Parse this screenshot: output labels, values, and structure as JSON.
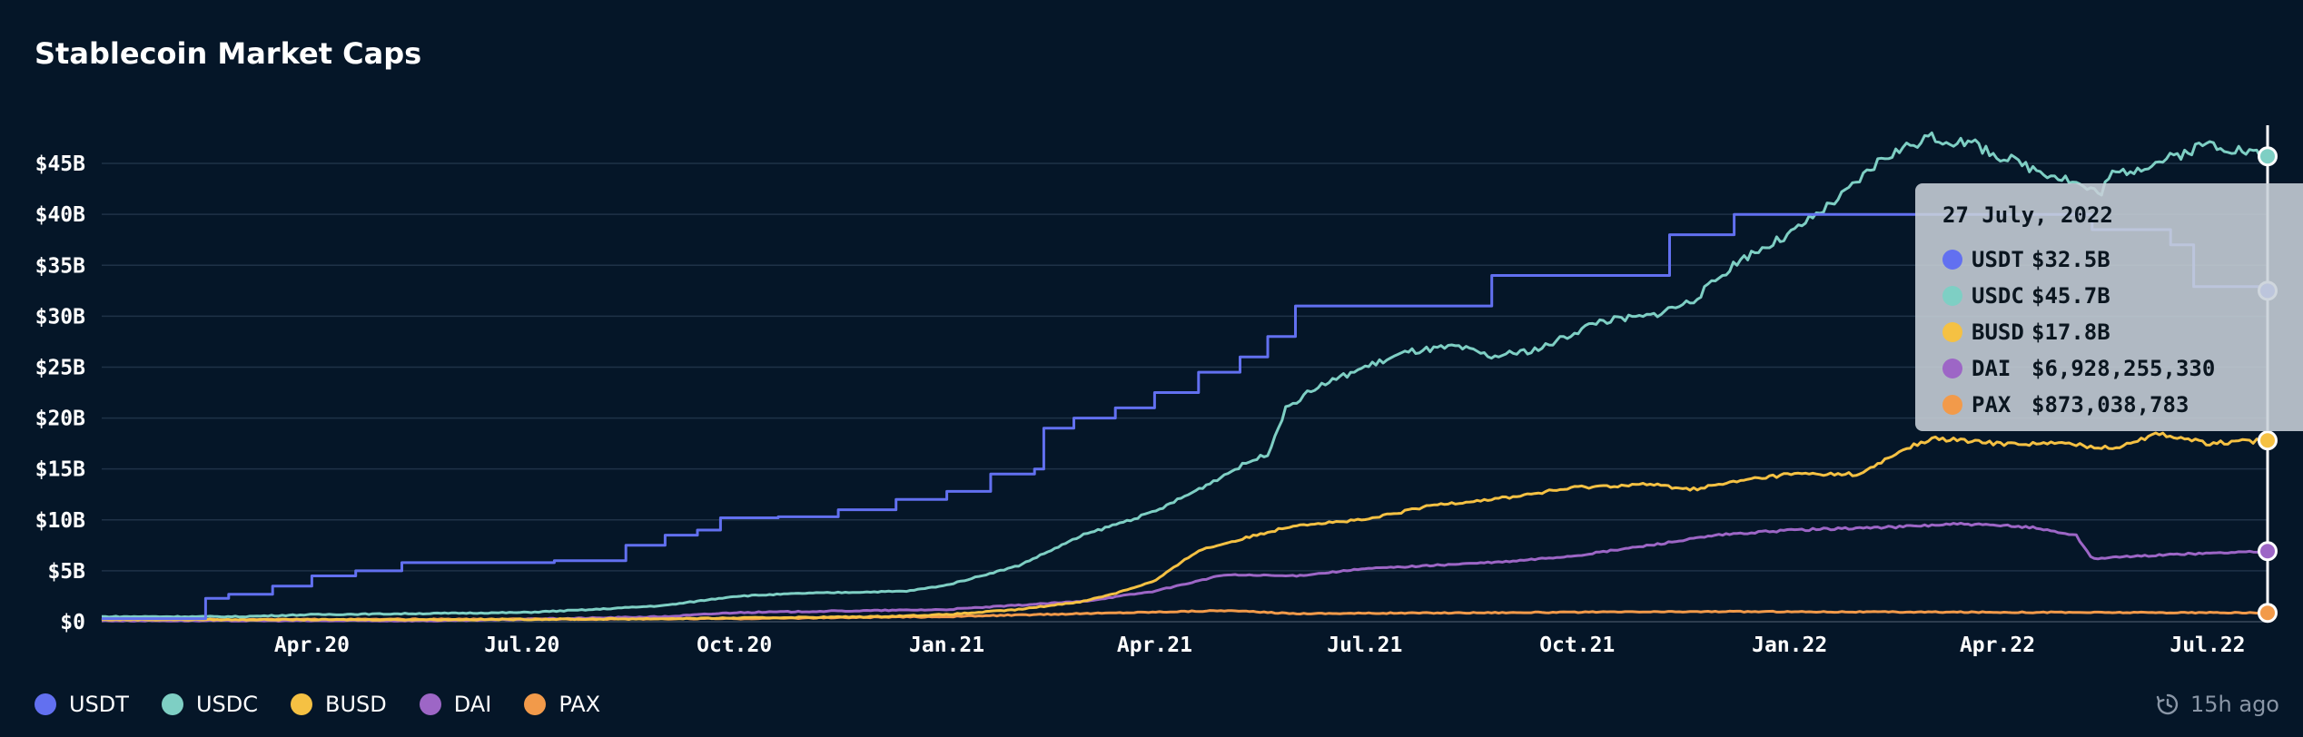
{
  "title": "Stablecoin Market Caps",
  "updated": "15h ago",
  "icons": {
    "refresh": "clock-history-icon"
  },
  "tooltip": {
    "date": "27 July, 2022",
    "rows": [
      {
        "name": "USDT",
        "value": "$32.5B",
        "color": "#6270f0"
      },
      {
        "name": "USDC",
        "value": "$45.7B",
        "color": "#7ecfc4"
      },
      {
        "name": "BUSD",
        "value": "$17.8B",
        "color": "#f5c143"
      },
      {
        "name": "DAI",
        "value": "$6,928,255,330",
        "color": "#9d66c6"
      },
      {
        "name": "PAX",
        "value": "$873,038,783",
        "color": "#f29a4a"
      }
    ]
  },
  "chart_data": {
    "type": "line",
    "y_unit": "billions USD",
    "ylim": [
      0,
      47.5
    ],
    "yticks": [
      0,
      5,
      10,
      15,
      20,
      25,
      30,
      35,
      40,
      45
    ],
    "ytick_labels": [
      "$0",
      "$5B",
      "$10B",
      "$15B",
      "$20B",
      "$25B",
      "$30B",
      "$35B",
      "$40B",
      "$45B"
    ],
    "xlim": [
      "2020-01-01",
      "2022-07-27"
    ],
    "xticks": [
      "2020-04-01",
      "2020-07-01",
      "2020-10-01",
      "2021-01-01",
      "2021-04-01",
      "2021-07-01",
      "2021-10-01",
      "2022-01-01",
      "2022-04-01",
      "2022-07-01"
    ],
    "xtick_labels": [
      "Apr.20",
      "Jul.20",
      "Oct.20",
      "Jan.21",
      "Apr.21",
      "Jul.21",
      "Oct.21",
      "Jan.22",
      "Apr.22",
      "Jul.22"
    ],
    "grid": true,
    "legend": "bottom-left",
    "cursor_date": "2022-07-27",
    "series": [
      {
        "name": "USDT",
        "color": "#6270f0",
        "step": true,
        "points": [
          [
            "2020-01-01",
            0.3
          ],
          [
            "2020-02-14",
            0.3
          ],
          [
            "2020-02-15",
            2.3
          ],
          [
            "2020-02-25",
            2.7
          ],
          [
            "2020-03-15",
            3.5
          ],
          [
            "2020-04-01",
            4.5
          ],
          [
            "2020-04-20",
            5.0
          ],
          [
            "2020-05-10",
            5.8
          ],
          [
            "2020-07-01",
            5.8
          ],
          [
            "2020-07-15",
            6.0
          ],
          [
            "2020-08-01",
            6.0
          ],
          [
            "2020-08-15",
            7.5
          ],
          [
            "2020-09-01",
            8.5
          ],
          [
            "2020-09-15",
            9.0
          ],
          [
            "2020-09-25",
            10.2
          ],
          [
            "2020-10-20",
            10.3
          ],
          [
            "2020-11-15",
            11.0
          ],
          [
            "2020-12-10",
            12.0
          ],
          [
            "2021-01-01",
            12.8
          ],
          [
            "2021-01-20",
            14.5
          ],
          [
            "2021-02-08",
            15.0
          ],
          [
            "2021-02-12",
            19.0
          ],
          [
            "2021-02-25",
            20.0
          ],
          [
            "2021-03-15",
            21.0
          ],
          [
            "2021-04-01",
            22.5
          ],
          [
            "2021-04-20",
            24.5
          ],
          [
            "2021-05-08",
            26.0
          ],
          [
            "2021-05-20",
            28.0
          ],
          [
            "2021-06-01",
            31.0
          ],
          [
            "2021-08-20",
            31.0
          ],
          [
            "2021-08-25",
            34.0
          ],
          [
            "2021-11-05",
            34.0
          ],
          [
            "2021-11-10",
            38.0
          ],
          [
            "2021-12-08",
            40.0
          ],
          [
            "2022-05-01",
            40.0
          ],
          [
            "2022-05-12",
            38.5
          ],
          [
            "2022-06-15",
            37.0
          ],
          [
            "2022-06-25",
            32.9
          ],
          [
            "2022-07-27",
            32.5
          ]
        ]
      },
      {
        "name": "USDC",
        "color": "#7ecfc4",
        "step": false,
        "points": [
          [
            "2020-01-01",
            0.5
          ],
          [
            "2020-03-01",
            0.5
          ],
          [
            "2020-04-01",
            0.7
          ],
          [
            "2020-07-01",
            0.9
          ],
          [
            "2020-08-01",
            1.2
          ],
          [
            "2020-09-01",
            1.6
          ],
          [
            "2020-10-01",
            2.5
          ],
          [
            "2020-11-01",
            2.8
          ],
          [
            "2020-12-15",
            3.0
          ],
          [
            "2021-01-01",
            3.6
          ],
          [
            "2021-02-01",
            5.5
          ],
          [
            "2021-03-01",
            8.5
          ],
          [
            "2021-04-01",
            10.8
          ],
          [
            "2021-04-20",
            13.0
          ],
          [
            "2021-05-10",
            15.5
          ],
          [
            "2021-05-20",
            16.5
          ],
          [
            "2021-05-28",
            21.0
          ],
          [
            "2021-06-10",
            23.0
          ],
          [
            "2021-07-01",
            25.0
          ],
          [
            "2021-07-20",
            26.5
          ],
          [
            "2021-08-10",
            27.0
          ],
          [
            "2021-08-25",
            26.0
          ],
          [
            "2021-09-15",
            26.8
          ],
          [
            "2021-10-10",
            29.5
          ],
          [
            "2021-11-01",
            30.0
          ],
          [
            "2021-11-20",
            31.5
          ],
          [
            "2021-12-10",
            35.5
          ],
          [
            "2022-01-01",
            38.0
          ],
          [
            "2022-01-25",
            42.0
          ],
          [
            "2022-02-10",
            45.5
          ],
          [
            "2022-03-01",
            47.5
          ],
          [
            "2022-03-20",
            47.0
          ],
          [
            "2022-04-10",
            45.0
          ],
          [
            "2022-05-01",
            43.5
          ],
          [
            "2022-05-15",
            42.0
          ],
          [
            "2022-05-20",
            43.8
          ],
          [
            "2022-06-15",
            45.5
          ],
          [
            "2022-07-01",
            47.0
          ],
          [
            "2022-07-15",
            46.3
          ],
          [
            "2022-07-27",
            45.7
          ]
        ]
      },
      {
        "name": "BUSD",
        "color": "#f5c143",
        "step": false,
        "points": [
          [
            "2020-01-01",
            0.2
          ],
          [
            "2020-06-01",
            0.2
          ],
          [
            "2020-09-01",
            0.3
          ],
          [
            "2020-12-01",
            0.5
          ],
          [
            "2021-01-01",
            0.7
          ],
          [
            "2021-02-01",
            1.2
          ],
          [
            "2021-03-01",
            2.0
          ],
          [
            "2021-03-15",
            2.8
          ],
          [
            "2021-04-01",
            4.0
          ],
          [
            "2021-04-20",
            7.0
          ],
          [
            "2021-05-15",
            8.5
          ],
          [
            "2021-06-01",
            9.5
          ],
          [
            "2021-07-01",
            10.0
          ],
          [
            "2021-08-01",
            11.5
          ],
          [
            "2021-09-01",
            12.2
          ],
          [
            "2021-10-01",
            13.2
          ],
          [
            "2021-11-01",
            13.5
          ],
          [
            "2021-11-20",
            13.0
          ],
          [
            "2021-12-15",
            14.0
          ],
          [
            "2022-01-01",
            14.5
          ],
          [
            "2022-02-01",
            14.5
          ],
          [
            "2022-02-20",
            17.0
          ],
          [
            "2022-03-05",
            18.0
          ],
          [
            "2022-04-01",
            17.5
          ],
          [
            "2022-05-01",
            17.5
          ],
          [
            "2022-05-20",
            17.0
          ],
          [
            "2022-06-10",
            18.5
          ],
          [
            "2022-07-01",
            17.5
          ],
          [
            "2022-07-27",
            17.8
          ]
        ]
      },
      {
        "name": "DAI",
        "color": "#9d66c6",
        "step": false,
        "points": [
          [
            "2020-01-01",
            0.1
          ],
          [
            "2020-06-01",
            0.1
          ],
          [
            "2020-09-01",
            0.5
          ],
          [
            "2020-10-01",
            0.9
          ],
          [
            "2021-01-01",
            1.2
          ],
          [
            "2021-03-01",
            2.0
          ],
          [
            "2021-04-01",
            3.0
          ],
          [
            "2021-05-01",
            4.6
          ],
          [
            "2021-06-01",
            4.5
          ],
          [
            "2021-07-01",
            5.2
          ],
          [
            "2021-09-01",
            5.9
          ],
          [
            "2021-10-01",
            6.5
          ],
          [
            "2021-11-01",
            7.5
          ],
          [
            "2021-12-01",
            8.5
          ],
          [
            "2022-01-01",
            9.0
          ],
          [
            "2022-02-15",
            9.3
          ],
          [
            "2022-03-15",
            9.6
          ],
          [
            "2022-04-15",
            9.3
          ],
          [
            "2022-05-05",
            8.5
          ],
          [
            "2022-05-12",
            6.2
          ],
          [
            "2022-06-15",
            6.6
          ],
          [
            "2022-07-27",
            6.93
          ]
        ]
      },
      {
        "name": "PAX",
        "color": "#f29a4a",
        "step": false,
        "points": [
          [
            "2020-01-01",
            0.2
          ],
          [
            "2020-07-01",
            0.25
          ],
          [
            "2020-10-01",
            0.3
          ],
          [
            "2021-01-01",
            0.5
          ],
          [
            "2021-03-01",
            0.8
          ],
          [
            "2021-05-01",
            1.1
          ],
          [
            "2021-06-01",
            0.8
          ],
          [
            "2021-09-01",
            0.9
          ],
          [
            "2021-12-01",
            1.0
          ],
          [
            "2022-03-01",
            0.95
          ],
          [
            "2022-07-27",
            0.873
          ]
        ]
      }
    ]
  }
}
